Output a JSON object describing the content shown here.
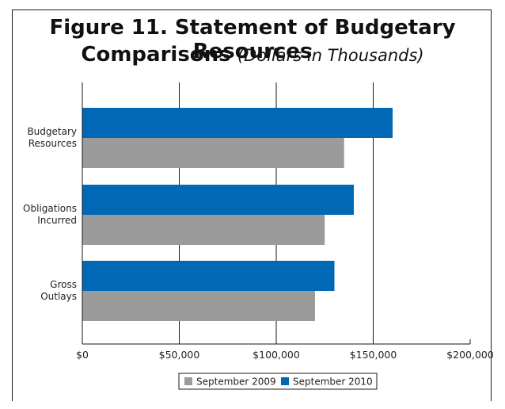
{
  "title": {
    "line1": "Figure 11. Statement of Budgetary Resources",
    "line2_bold": "Comparisons",
    "line2_sub": "(Dollars in Thousands)"
  },
  "chart_data": {
    "type": "bar",
    "orientation": "horizontal",
    "categories": [
      [
        "Budgetary",
        "Resources"
      ],
      [
        "Obligations",
        "Incurred"
      ],
      [
        "Gross",
        "Outlays"
      ]
    ],
    "series": [
      {
        "name": "September 2010",
        "color": "#0068b4",
        "values": [
          160000,
          140000,
          130000
        ]
      },
      {
        "name": "September 2009",
        "color": "#9b9b9b",
        "values": [
          135000,
          125000,
          120000
        ]
      }
    ],
    "xlim": [
      0,
      200000
    ],
    "xticks": [
      0,
      50000,
      100000,
      150000,
      200000
    ],
    "xtick_labels": [
      "$0",
      "$50,000",
      "$100,000",
      "$150,000",
      "$200,000"
    ],
    "grid": "vertical",
    "legend": {
      "placement": "bottom",
      "order": [
        "September 2009",
        "September 2010"
      ]
    }
  }
}
